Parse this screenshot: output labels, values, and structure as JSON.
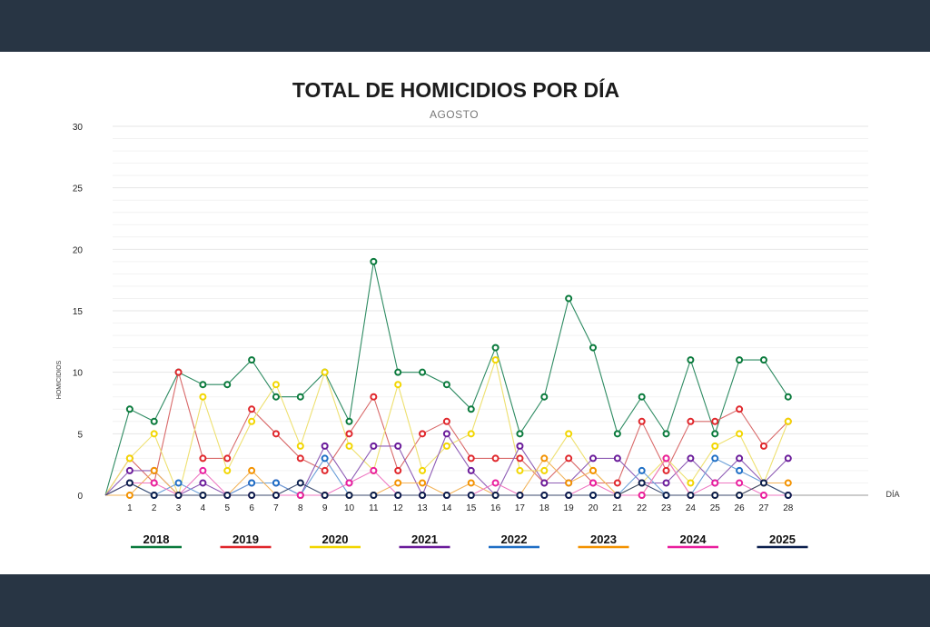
{
  "chart_data": {
    "type": "line",
    "title": "TOTAL DE HOMICIDIOS POR DÍA",
    "subtitle": "AGOSTO",
    "ylabel": "HOMICIDIOS",
    "xlabel": "DÍA",
    "ylim": [
      0,
      30
    ],
    "yticks": [
      0,
      5,
      10,
      15,
      20,
      25,
      30
    ],
    "grid": true,
    "legend_position": "bottom",
    "x": [
      0,
      1,
      2,
      3,
      4,
      5,
      6,
      7,
      8,
      9,
      10,
      11,
      12,
      13,
      14,
      15,
      16,
      17,
      18,
      19,
      20,
      21,
      22,
      23,
      24,
      25,
      26,
      27,
      28
    ],
    "x_tick_labels": [
      "1",
      "2",
      "3",
      "4",
      "5",
      "6",
      "7",
      "8",
      "9",
      "10",
      "11",
      "12",
      "13",
      "14",
      "15",
      "16",
      "17",
      "18",
      "19",
      "20",
      "21",
      "22",
      "23",
      "24",
      "25",
      "26",
      "27",
      "28"
    ],
    "series": [
      {
        "name": "2018",
        "color": "#0a7a3c",
        "line_color": "#2e8b62",
        "values": [
          0,
          7,
          6,
          10,
          9,
          9,
          11,
          8,
          8,
          10,
          6,
          19,
          10,
          10,
          9,
          7,
          12,
          5,
          8,
          16,
          12,
          5,
          8,
          5,
          11,
          5,
          11,
          11,
          8
        ]
      },
      {
        "name": "2019",
        "color": "#e0262b",
        "line_color": "#d96a6a",
        "values": [
          0,
          3,
          1,
          10,
          3,
          3,
          7,
          5,
          3,
          2,
          5,
          8,
          2,
          5,
          6,
          3,
          3,
          3,
          1,
          3,
          1,
          1,
          6,
          2,
          6,
          6,
          7,
          4,
          6
        ]
      },
      {
        "name": "2020",
        "color": "#f2d600",
        "line_color": "#eee070",
        "values": [
          0,
          3,
          5,
          0,
          8,
          2,
          6,
          9,
          4,
          10,
          4,
          2,
          9,
          2,
          4,
          5,
          11,
          2,
          2,
          5,
          2,
          0,
          1,
          3,
          1,
          4,
          5,
          1,
          6
        ]
      },
      {
        "name": "2021",
        "color": "#6a1b9a",
        "line_color": "#8e5cb5",
        "values": [
          0,
          2,
          2,
          0,
          1,
          0,
          1,
          1,
          0,
          4,
          1,
          4,
          4,
          0,
          5,
          2,
          0,
          4,
          1,
          1,
          3,
          3,
          1,
          1,
          3,
          1,
          3,
          1,
          3
        ]
      },
      {
        "name": "2022",
        "color": "#1f6fc5",
        "line_color": "#6a9fd8",
        "values": [
          0,
          1,
          0,
          1,
          0,
          0,
          1,
          1,
          0,
          3,
          0,
          0,
          0,
          0,
          0,
          0,
          0,
          0,
          0,
          0,
          0,
          0,
          2,
          0,
          0,
          3,
          2,
          1,
          0
        ]
      },
      {
        "name": "2023",
        "color": "#f39200",
        "line_color": "#f2b35a",
        "values": [
          0,
          0,
          2,
          0,
          0,
          0,
          2,
          0,
          0,
          0,
          0,
          0,
          1,
          1,
          0,
          1,
          0,
          0,
          3,
          1,
          2,
          0,
          0,
          3,
          0,
          0,
          0,
          1,
          1
        ]
      },
      {
        "name": "2024",
        "color": "#e91e9e",
        "line_color": "#ee78c2",
        "values": [
          0,
          1,
          1,
          0,
          2,
          0,
          0,
          0,
          0,
          0,
          1,
          2,
          0,
          0,
          0,
          0,
          1,
          0,
          0,
          0,
          1,
          0,
          0,
          3,
          0,
          1,
          1,
          0,
          0
        ]
      },
      {
        "name": "2025",
        "color": "#0b1f4d",
        "line_color": "#3b4a6e",
        "values": [
          0,
          1,
          0,
          0,
          0,
          0,
          0,
          0,
          1,
          0,
          0,
          0,
          0,
          0,
          0,
          0,
          0,
          0,
          0,
          0,
          0,
          0,
          1,
          0,
          0,
          0,
          0,
          1,
          0
        ]
      }
    ]
  }
}
